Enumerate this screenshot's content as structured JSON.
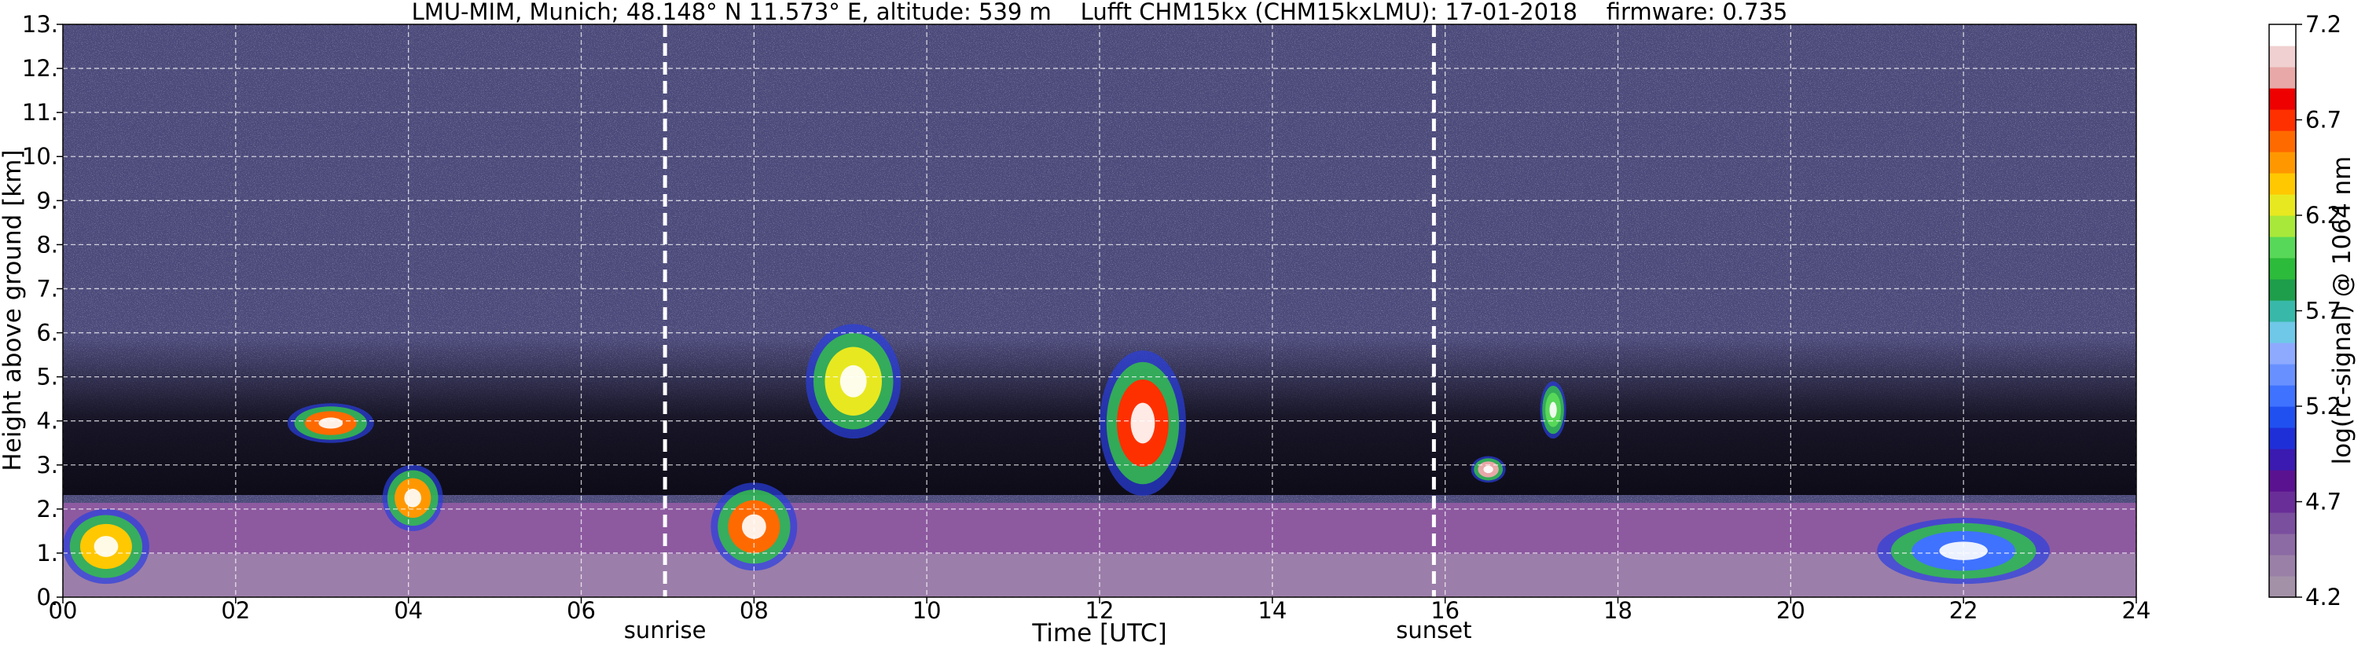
{
  "chart_data": {
    "type": "heatmap",
    "title": "LMU-MIM, Munich; 48.148° N 11.573° E, altitude: 539 m    Lufft CHM15kx (CHM15kxLMU): 17-01-2018    firmware: 0.735",
    "xlabel": "Time [UTC]",
    "ylabel": "Height above ground [km]",
    "xlim": [
      0,
      24
    ],
    "ylim": [
      0,
      13
    ],
    "x_ticks": [
      "00",
      "02",
      "04",
      "06",
      "08",
      "10",
      "12",
      "14",
      "16",
      "18",
      "20",
      "22",
      "24"
    ],
    "y_ticks": [
      "0.",
      "1.",
      "2.",
      "3.",
      "4.",
      "5.",
      "6.",
      "7.",
      "8.",
      "9.",
      "10.",
      "11.",
      "12.",
      "13."
    ],
    "grid": true,
    "annotations": [
      {
        "label": "sunrise",
        "time_utc": 6.97
      },
      {
        "label": "sunset",
        "time_utc": 15.87
      }
    ],
    "colorbar": {
      "label": "log(rc-signal) @ 1064 nm",
      "range": [
        4.2,
        7.2
      ],
      "ticks": [
        "4.2",
        "4.7",
        "5.2",
        "5.7",
        "6.2",
        "6.7",
        "7.2"
      ],
      "colors": [
        "#a391a8",
        "#9a80a6",
        "#8c6aa3",
        "#7a4f9e",
        "#6a2e98",
        "#5a1290",
        "#3a1ab0",
        "#1f2fd8",
        "#2050f0",
        "#3f72ff",
        "#6890ff",
        "#8eaaff",
        "#6fc8e8",
        "#38b8a8",
        "#1e9e4a",
        "#2cbb3a",
        "#58d858",
        "#a8e83a",
        "#e8e820",
        "#ffc800",
        "#ff9800",
        "#ff6a00",
        "#ff3000",
        "#ee0000",
        "#e8a8a8",
        "#f0d0d0",
        "#ffffff"
      ]
    },
    "cloud_features": [
      {
        "t0": 0.0,
        "t1": 1.0,
        "h0": 0.3,
        "h1": 2.0,
        "v": 6.4
      },
      {
        "t0": 2.6,
        "t1": 3.6,
        "h0": 3.5,
        "h1": 4.4,
        "v": 6.6
      },
      {
        "t0": 3.7,
        "t1": 4.4,
        "h0": 1.5,
        "h1": 3.0,
        "v": 6.5
      },
      {
        "t0": 7.5,
        "t1": 8.5,
        "h0": 0.6,
        "h1": 2.6,
        "v": 6.6
      },
      {
        "t0": 8.6,
        "t1": 9.7,
        "h0": 3.6,
        "h1": 6.2,
        "v": 6.2
      },
      {
        "t0": 12.0,
        "t1": 13.0,
        "h0": 2.3,
        "h1": 5.6,
        "v": 6.7
      },
      {
        "t0": 16.3,
        "t1": 16.7,
        "h0": 2.6,
        "h1": 3.2,
        "v": 6.9
      },
      {
        "t0": 17.1,
        "t1": 17.4,
        "h0": 3.6,
        "h1": 4.9,
        "v": 6.0
      },
      {
        "t0": 21.0,
        "t1": 23.0,
        "h0": 0.3,
        "h1": 1.8,
        "v": 5.3
      }
    ]
  }
}
